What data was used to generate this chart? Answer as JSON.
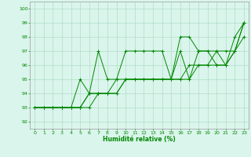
{
  "xlabel": "Humidité relative (%)",
  "xlim": [
    -0.5,
    23.5
  ],
  "ylim": [
    91.5,
    100.5
  ],
  "yticks": [
    92,
    93,
    94,
    95,
    96,
    97,
    98,
    99,
    100
  ],
  "xticks": [
    0,
    1,
    2,
    3,
    4,
    5,
    6,
    7,
    8,
    9,
    10,
    11,
    12,
    13,
    14,
    15,
    16,
    17,
    18,
    19,
    20,
    21,
    22,
    23
  ],
  "bg_color": "#daf5ec",
  "grid_color": "#b0ddc8",
  "line_color": "#008800",
  "lines": [
    [
      93,
      93,
      93,
      93,
      93,
      95,
      94,
      97,
      95,
      95,
      97,
      97,
      97,
      97,
      97,
      95,
      98,
      98,
      97,
      97,
      97,
      96,
      97,
      99
    ],
    [
      93,
      93,
      93,
      93,
      93,
      93,
      94,
      94,
      94,
      94,
      95,
      95,
      95,
      95,
      95,
      95,
      95,
      96,
      96,
      96,
      96,
      96,
      97,
      98
    ],
    [
      93,
      93,
      93,
      93,
      93,
      93,
      94,
      94,
      94,
      95,
      95,
      95,
      95,
      95,
      95,
      95,
      97,
      95,
      97,
      97,
      96,
      96,
      98,
      99
    ],
    [
      93,
      93,
      93,
      93,
      93,
      93,
      93,
      94,
      94,
      94,
      95,
      95,
      95,
      95,
      95,
      95,
      95,
      95,
      96,
      96,
      97,
      97,
      97,
      99
    ]
  ]
}
